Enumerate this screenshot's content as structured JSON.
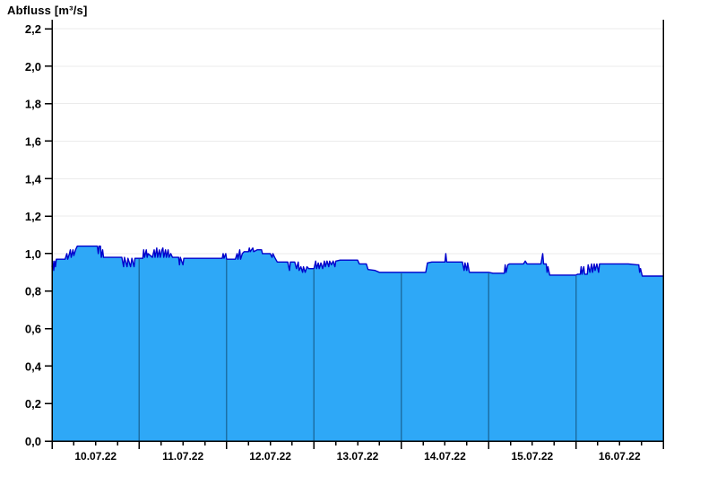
{
  "title": "Abfluss [m³/s]",
  "colors": {
    "background": "#FFFFFF",
    "area_fill": "#2EA8F7",
    "trace_line": "#0000CC",
    "day_divider": "#1C6FA6",
    "gridline": "#EBEBEB",
    "axis": "#000000",
    "label_text": "#000000"
  },
  "chart_data": {
    "type": "area",
    "title": "Abfluss [m³/s]",
    "xlabel": "",
    "ylabel": "Abfluss [m³/s]",
    "ylim": [
      0.0,
      2.2
    ],
    "ytick_step": 0.2,
    "ytick_labels": [
      "0,0",
      "0,2",
      "0,4",
      "0,6",
      "0,8",
      "1,0",
      "1,2",
      "1,4",
      "1,6",
      "1,8",
      "2,0",
      "2,2"
    ],
    "xlim_days": [
      0,
      7
    ],
    "x_day_labels": [
      "10.07.22",
      "11.07.22",
      "12.07.22",
      "13.07.22",
      "14.07.22",
      "15.07.22",
      "16.07.22"
    ],
    "x_minor_tick_interval_days": 0.25,
    "grid": "horizontal, light gray, at every 0.2",
    "legend_position": "none",
    "x_unit": "days since 10.07.22 00:00",
    "y_unit": "m³/s",
    "series": [
      {
        "name": "Abfluss",
        "points": [
          [
            0.0,
            0.93
          ],
          [
            0.01,
            0.96
          ],
          [
            0.02,
            0.91
          ],
          [
            0.03,
            0.96
          ],
          [
            0.04,
            0.93
          ],
          [
            0.05,
            0.97
          ],
          [
            0.15,
            0.97
          ],
          [
            0.17,
            1.0
          ],
          [
            0.18,
            0.97
          ],
          [
            0.2,
            1.0
          ],
          [
            0.21,
            1.02
          ],
          [
            0.22,
            0.98
          ],
          [
            0.24,
            1.02
          ],
          [
            0.25,
            0.99
          ],
          [
            0.27,
            1.02
          ],
          [
            0.29,
            1.04
          ],
          [
            0.52,
            1.04
          ],
          [
            0.53,
            1.0
          ],
          [
            0.54,
            1.04
          ],
          [
            0.555,
            1.04
          ],
          [
            0.565,
            0.98
          ],
          [
            0.58,
            1.02
          ],
          [
            0.59,
            0.98
          ],
          [
            0.8,
            0.98
          ],
          [
            0.82,
            0.93
          ],
          [
            0.83,
            0.98
          ],
          [
            0.86,
            0.93
          ],
          [
            0.87,
            0.975
          ],
          [
            0.9,
            0.93
          ],
          [
            0.915,
            0.975
          ],
          [
            0.94,
            0.93
          ],
          [
            0.95,
            0.975
          ],
          [
            1.04,
            0.975
          ],
          [
            1.05,
            1.02
          ],
          [
            1.06,
            0.98
          ],
          [
            1.08,
            1.02
          ],
          [
            1.09,
            0.98
          ],
          [
            1.1,
            1.0
          ],
          [
            1.15,
            0.98
          ],
          [
            1.17,
            1.02
          ],
          [
            1.18,
            0.98
          ],
          [
            1.2,
            1.03
          ],
          [
            1.21,
            0.98
          ],
          [
            1.23,
            1.02
          ],
          [
            1.24,
            0.98
          ],
          [
            1.26,
            1.02
          ],
          [
            1.27,
            1.03
          ],
          [
            1.28,
            0.98
          ],
          [
            1.3,
            1.02
          ],
          [
            1.31,
            0.98
          ],
          [
            1.33,
            1.02
          ],
          [
            1.34,
            0.98
          ],
          [
            1.36,
            1.0
          ],
          [
            1.38,
            0.98
          ],
          [
            1.45,
            0.98
          ],
          [
            1.46,
            0.94
          ],
          [
            1.47,
            0.98
          ],
          [
            1.5,
            0.94
          ],
          [
            1.51,
            0.975
          ],
          [
            1.95,
            0.975
          ],
          [
            1.96,
            1.0
          ],
          [
            1.97,
            0.975
          ],
          [
            1.99,
            1.0
          ],
          [
            2.0,
            0.97
          ],
          [
            2.1,
            0.97
          ],
          [
            2.12,
            1.0
          ],
          [
            2.13,
            0.97
          ],
          [
            2.15,
            1.02
          ],
          [
            2.16,
            0.97
          ],
          [
            2.18,
            1.0
          ],
          [
            2.2,
            1.01
          ],
          [
            2.25,
            1.01
          ],
          [
            2.26,
            1.03
          ],
          [
            2.27,
            1.01
          ],
          [
            2.3,
            1.03
          ],
          [
            2.31,
            1.01
          ],
          [
            2.35,
            1.02
          ],
          [
            2.4,
            1.02
          ],
          [
            2.41,
            1.0
          ],
          [
            2.5,
            1.0
          ],
          [
            2.52,
            0.98
          ],
          [
            2.53,
            1.0
          ],
          [
            2.55,
            0.98
          ],
          [
            2.58,
            0.955
          ],
          [
            2.7,
            0.955
          ],
          [
            2.72,
            0.91
          ],
          [
            2.73,
            0.955
          ],
          [
            2.78,
            0.955
          ],
          [
            2.8,
            0.92
          ],
          [
            2.82,
            0.955
          ],
          [
            2.83,
            0.91
          ],
          [
            2.85,
            0.93
          ],
          [
            2.87,
            0.9
          ],
          [
            2.88,
            0.93
          ],
          [
            2.9,
            0.9
          ],
          [
            2.92,
            0.93
          ],
          [
            2.94,
            0.92
          ],
          [
            3.0,
            0.92
          ],
          [
            3.02,
            0.96
          ],
          [
            3.03,
            0.92
          ],
          [
            3.05,
            0.95
          ],
          [
            3.06,
            0.92
          ],
          [
            3.08,
            0.95
          ],
          [
            3.1,
            0.92
          ],
          [
            3.12,
            0.96
          ],
          [
            3.13,
            0.93
          ],
          [
            3.15,
            0.96
          ],
          [
            3.17,
            0.93
          ],
          [
            3.18,
            0.96
          ],
          [
            3.2,
            0.94
          ],
          [
            3.22,
            0.96
          ],
          [
            3.24,
            0.93
          ],
          [
            3.25,
            0.96
          ],
          [
            3.3,
            0.965
          ],
          [
            3.5,
            0.965
          ],
          [
            3.52,
            0.945
          ],
          [
            3.6,
            0.945
          ],
          [
            3.62,
            0.915
          ],
          [
            3.7,
            0.91
          ],
          [
            3.75,
            0.9
          ],
          [
            4.0,
            0.9
          ],
          [
            4.28,
            0.9
          ],
          [
            4.3,
            0.95
          ],
          [
            4.35,
            0.955
          ],
          [
            4.5,
            0.955
          ],
          [
            4.51,
            1.0
          ],
          [
            4.52,
            0.955
          ],
          [
            4.7,
            0.955
          ],
          [
            4.72,
            0.91
          ],
          [
            4.73,
            0.95
          ],
          [
            4.75,
            0.91
          ],
          [
            4.76,
            0.95
          ],
          [
            4.78,
            0.9
          ],
          [
            5.0,
            0.9
          ],
          [
            5.05,
            0.895
          ],
          [
            5.18,
            0.895
          ],
          [
            5.19,
            0.94
          ],
          [
            5.2,
            0.9
          ],
          [
            5.22,
            0.94
          ],
          [
            5.24,
            0.945
          ],
          [
            5.4,
            0.945
          ],
          [
            5.42,
            0.96
          ],
          [
            5.44,
            0.945
          ],
          [
            5.6,
            0.945
          ],
          [
            5.62,
            1.0
          ],
          [
            5.63,
            0.945
          ],
          [
            5.66,
            0.945
          ],
          [
            5.67,
            0.9
          ],
          [
            5.68,
            0.93
          ],
          [
            5.7,
            0.885
          ],
          [
            6.0,
            0.885
          ],
          [
            6.02,
            0.89
          ],
          [
            6.05,
            0.89
          ],
          [
            6.06,
            0.93
          ],
          [
            6.07,
            0.89
          ],
          [
            6.09,
            0.93
          ],
          [
            6.1,
            0.89
          ],
          [
            6.13,
            0.89
          ],
          [
            6.14,
            0.94
          ],
          [
            6.16,
            0.9
          ],
          [
            6.18,
            0.945
          ],
          [
            6.19,
            0.9
          ],
          [
            6.21,
            0.945
          ],
          [
            6.22,
            0.91
          ],
          [
            6.24,
            0.945
          ],
          [
            6.26,
            0.9
          ],
          [
            6.27,
            0.945
          ],
          [
            6.6,
            0.945
          ],
          [
            6.7,
            0.94
          ],
          [
            6.72,
            0.94
          ],
          [
            6.73,
            0.9
          ],
          [
            6.74,
            0.92
          ],
          [
            6.76,
            0.88
          ],
          [
            7.0,
            0.88
          ]
        ]
      }
    ]
  }
}
